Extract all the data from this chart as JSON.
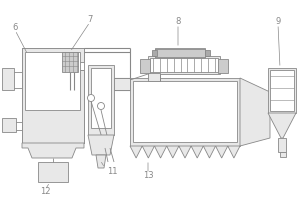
{
  "line_color": "#888888",
  "fill_light": "#e8e8e8",
  "fill_med": "#cccccc",
  "fill_dark": "#aaaaaa",
  "label_color": "#888888",
  "lw": 0.6
}
